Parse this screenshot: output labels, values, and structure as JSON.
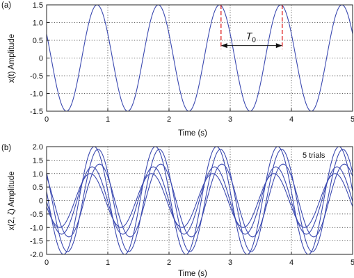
{
  "chart_data": [
    {
      "panel_label": "(a)",
      "type": "line",
      "xlabel": "Time (s)",
      "ylabel": "x(t) Amplitude",
      "xlim": [
        0,
        5
      ],
      "ylim": [
        -1.5,
        1.5
      ],
      "xticks": [
        "0",
        "1",
        "2",
        "3",
        "4",
        "5"
      ],
      "yticks": [
        "1.5",
        "1.0",
        "0.5",
        "0",
        "-0.5",
        "-1.0",
        "-1.5"
      ],
      "grid": true,
      "series": [
        {
          "amplitude": 1.5,
          "period_s": 1.0,
          "phase_rad": 1.1,
          "color": "#3b49b0"
        }
      ],
      "annotation": {
        "label": "T",
        "subscript": "0",
        "marker_times_s": [
          2.85,
          3.85
        ],
        "marker_color": "#e02b2b",
        "arrow_y": 0.35
      }
    },
    {
      "panel_label": "(b)",
      "type": "line",
      "xlabel": "Time (s)",
      "ylabel": "x(2, ζ) Amplitude",
      "xlim": [
        0,
        5
      ],
      "ylim": [
        -2.0,
        2.0
      ],
      "xticks": [
        "0",
        "1",
        "2",
        "3",
        "4",
        "5"
      ],
      "yticks": [
        "2.0",
        "1.5",
        "1.0",
        "0.5",
        "0",
        "-0.5",
        "-1.0",
        "-1.5",
        "-2.0"
      ],
      "grid": true,
      "annotation_text": "5 trials",
      "series": [
        {
          "amplitude": 2.0,
          "period_s": 1.0,
          "phase_rad": 1.4,
          "color": "#3b49b0"
        },
        {
          "amplitude": 1.9,
          "period_s": 1.0,
          "phase_rad": 1.0,
          "color": "#3b49b0"
        },
        {
          "amplitude": 1.35,
          "period_s": 1.0,
          "phase_rad": 0.85,
          "color": "#3b49b0"
        },
        {
          "amplitude": 1.25,
          "period_s": 1.0,
          "phase_rad": 1.6,
          "color": "#3b49b0"
        },
        {
          "amplitude": 1.0,
          "period_s": 1.0,
          "phase_rad": 1.8,
          "color": "#3b49b0"
        }
      ]
    }
  ]
}
